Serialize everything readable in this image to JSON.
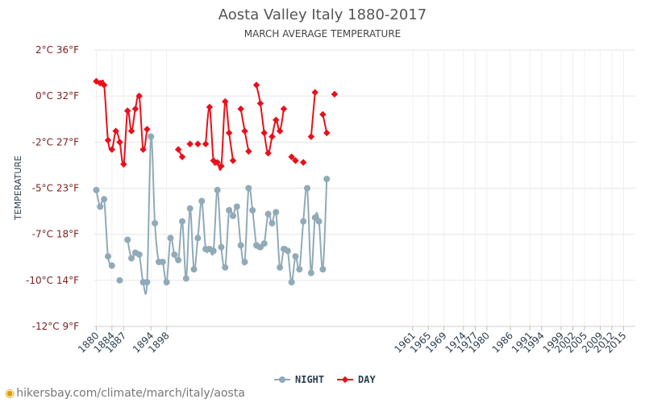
{
  "chart_data": {
    "type": "line",
    "title": "Aosta Valley Italy 1880-2017",
    "subtitle": "MARCH AVERAGE TEMPERATURE",
    "ylabel": "TEMPERATURE",
    "ylim": [
      -12.5,
      2.5
    ],
    "xlim": [
      1879.5,
      2018
    ],
    "grid": true,
    "legend_position": "bottom",
    "y_ticks": [
      {
        "value": 2.5,
        "label": "2°C 36°F"
      },
      {
        "value": 0,
        "label": "0°C 32°F"
      },
      {
        "value": -2.5,
        "label": "-2°C 27°F"
      },
      {
        "value": -5,
        "label": "-5°C 23°F"
      },
      {
        "value": -7.5,
        "label": "-7°C 18°F"
      },
      {
        "value": -10,
        "label": "-10°C 14°F"
      },
      {
        "value": -12.5,
        "label": "-12°C 9°F"
      }
    ],
    "x_ticks": [
      "1880",
      "1884",
      "1887",
      "1894",
      "1898",
      "1961",
      "1965",
      "1969",
      "1974",
      "1977",
      "1980",
      "1986",
      "1991",
      "1994",
      "1999",
      "2002",
      "2005",
      "2009",
      "2012",
      "2015"
    ],
    "x_tick_values": [
      1880,
      1884,
      1887,
      1894,
      1898,
      1961,
      1965,
      1969,
      1974,
      1977,
      1980,
      1986,
      1991,
      1994,
      1999,
      2002,
      2005,
      2009,
      2012,
      2015
    ],
    "series": [
      {
        "name": "NIGHT",
        "color": "#90aab8",
        "points": [
          [
            1880,
            -5.1
          ],
          [
            1881,
            -6.0
          ],
          [
            1882,
            -5.6
          ],
          [
            1883,
            -8.7
          ],
          [
            1884,
            -9.2
          ],
          [
            1886,
            -10.0
          ],
          [
            1888,
            -7.8
          ],
          [
            1889,
            -8.8
          ],
          [
            1890,
            -8.5
          ],
          [
            1891,
            -8.6
          ],
          [
            1892,
            -10.1
          ],
          [
            1893,
            -10.1
          ],
          [
            1894,
            -2.2
          ],
          [
            1895,
            -6.9
          ],
          [
            1896,
            -9.0
          ],
          [
            1897,
            -9.0
          ],
          [
            1898,
            -10.1
          ],
          [
            1899,
            -7.7
          ],
          [
            1900,
            -8.6
          ],
          [
            1901,
            -8.9
          ],
          [
            1902,
            -6.8
          ],
          [
            1903,
            -9.9
          ],
          [
            1904,
            -6.1
          ],
          [
            1905,
            -9.4
          ],
          [
            1906,
            -7.7
          ],
          [
            1907,
            -5.7
          ],
          [
            1908,
            -8.3
          ],
          [
            1909,
            -8.3
          ],
          [
            1910,
            -8.4
          ],
          [
            1911,
            -5.1
          ],
          [
            1912,
            -8.2
          ],
          [
            1913,
            -9.3
          ],
          [
            1914,
            -6.2
          ],
          [
            1915,
            -6.5
          ],
          [
            1916,
            -6.0
          ],
          [
            1917,
            -8.1
          ],
          [
            1918,
            -9.0
          ],
          [
            1919,
            -5.0
          ],
          [
            1920,
            -6.2
          ],
          [
            1921,
            -8.1
          ],
          [
            1922,
            -8.2
          ],
          [
            1923,
            -8.0
          ],
          [
            1924,
            -6.4
          ],
          [
            1925,
            -6.9
          ],
          [
            1926,
            -6.3
          ],
          [
            1927,
            -9.3
          ],
          [
            1928,
            -8.3
          ],
          [
            1929,
            -8.4
          ],
          [
            1930,
            -10.1
          ],
          [
            1931,
            -8.7
          ],
          [
            1932,
            -9.4
          ],
          [
            1933,
            -6.8
          ],
          [
            1934,
            -5.0
          ],
          [
            1935,
            -9.6
          ],
          [
            1936,
            -6.6
          ],
          [
            1937,
            -6.8
          ],
          [
            1938,
            -9.4
          ],
          [
            1939,
            -4.5
          ]
        ]
      },
      {
        "name": "DAY",
        "color": "#e8101a",
        "points": [
          [
            1880,
            0.8
          ],
          [
            1881,
            0.7
          ],
          [
            1882,
            0.6
          ],
          [
            1883,
            -2.4
          ],
          [
            1884,
            -2.9
          ],
          [
            1885,
            -1.9
          ],
          [
            1886,
            -2.5
          ],
          [
            1887,
            -3.7
          ],
          [
            1888,
            -0.8
          ],
          [
            1889,
            -1.9
          ],
          [
            1890,
            -0.7
          ],
          [
            1891,
            0.0
          ],
          [
            1892,
            -2.9
          ],
          [
            1893,
            -1.8
          ],
          [
            1901,
            -2.9
          ],
          [
            1902,
            -3.3
          ],
          [
            1904,
            -2.6
          ],
          [
            1906,
            -2.6
          ],
          [
            1908,
            -2.6
          ],
          [
            1909,
            -0.6
          ],
          [
            1910,
            -3.5
          ],
          [
            1911,
            -3.6
          ],
          [
            1912,
            -3.8
          ],
          [
            1913,
            -0.3
          ],
          [
            1914,
            -2.0
          ],
          [
            1915,
            -3.5
          ],
          [
            1917,
            -0.7
          ],
          [
            1918,
            -1.9
          ],
          [
            1919,
            -3.0
          ],
          [
            1921,
            0.6
          ],
          [
            1922,
            -0.4
          ],
          [
            1923,
            -2.0
          ],
          [
            1924,
            -3.1
          ],
          [
            1925,
            -2.2
          ],
          [
            1926,
            -1.3
          ],
          [
            1927,
            -1.9
          ],
          [
            1928,
            -0.7
          ],
          [
            1930,
            -3.3
          ],
          [
            1931,
            -3.5
          ],
          [
            1933,
            -3.6
          ],
          [
            1935,
            -2.2
          ],
          [
            1936,
            0.2
          ],
          [
            1938,
            -1.0
          ],
          [
            1939,
            -2.0
          ],
          [
            1941,
            0.1
          ]
        ]
      }
    ]
  },
  "watermark": {
    "text": "hikersbay.com/climate/march/italy/aosta"
  }
}
